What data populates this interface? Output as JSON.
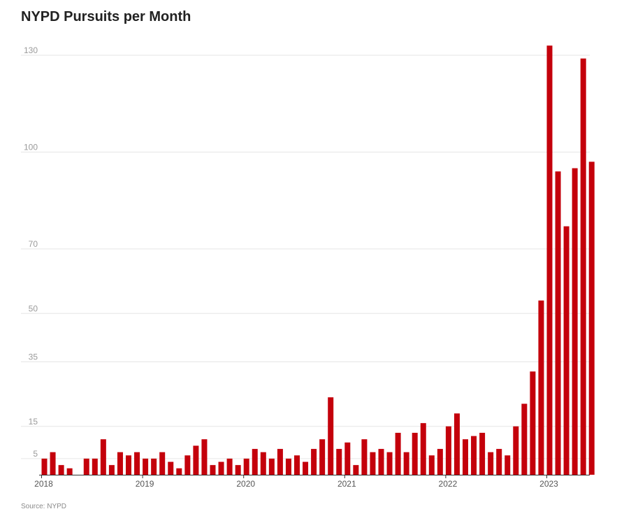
{
  "title": "NYPD Pursuits per Month",
  "source": "Source: NYPD",
  "colors": {
    "bar": "#c4000b",
    "grid": "#e6e6e6",
    "tick_text": "#9a9a9a",
    "axis": "#333333"
  },
  "chart_data": {
    "type": "bar",
    "title": "NYPD Pursuits per Month",
    "xlabel": "",
    "ylabel": "",
    "y_ticks": [
      5,
      15,
      35,
      50,
      70,
      100,
      130
    ],
    "ylim": [
      0,
      131
    ],
    "grid": true,
    "x_tick_labels": [
      "2018",
      "2019",
      "2020",
      "2021",
      "2022",
      "2023"
    ],
    "categories": [
      "2018-01",
      "2018-02",
      "2018-03",
      "2018-04",
      "2018-05",
      "2018-06",
      "2018-07",
      "2018-08",
      "2018-09",
      "2018-10",
      "2018-11",
      "2018-12",
      "2019-01",
      "2019-02",
      "2019-03",
      "2019-04",
      "2019-05",
      "2019-06",
      "2019-07",
      "2019-08",
      "2019-09",
      "2019-10",
      "2019-11",
      "2019-12",
      "2020-01",
      "2020-02",
      "2020-03",
      "2020-04",
      "2020-05",
      "2020-06",
      "2020-07",
      "2020-08",
      "2020-09",
      "2020-10",
      "2020-11",
      "2020-12",
      "2021-01",
      "2021-02",
      "2021-03",
      "2021-04",
      "2021-05",
      "2021-06",
      "2021-07",
      "2021-08",
      "2021-09",
      "2021-10",
      "2021-11",
      "2021-12",
      "2022-01",
      "2022-02",
      "2022-03",
      "2022-04",
      "2022-05",
      "2022-06",
      "2022-07",
      "2022-08",
      "2022-09",
      "2022-10",
      "2022-11",
      "2022-12",
      "2023-01",
      "2023-02",
      "2023-03",
      "2023-04",
      "2023-05",
      "2023-06"
    ],
    "values": [
      5,
      7,
      3,
      2,
      0,
      5,
      5,
      11,
      3,
      7,
      6,
      7,
      5,
      5,
      7,
      4,
      2,
      6,
      9,
      11,
      3,
      4,
      5,
      3,
      5,
      8,
      7,
      5,
      8,
      5,
      6,
      4,
      8,
      11,
      24,
      8,
      10,
      3,
      11,
      7,
      8,
      7,
      13,
      7,
      13,
      16,
      6,
      8,
      15,
      19,
      11,
      12,
      13,
      7,
      8,
      6,
      15,
      22,
      32,
      54,
      133,
      94,
      77,
      95,
      129,
      97
    ]
  }
}
